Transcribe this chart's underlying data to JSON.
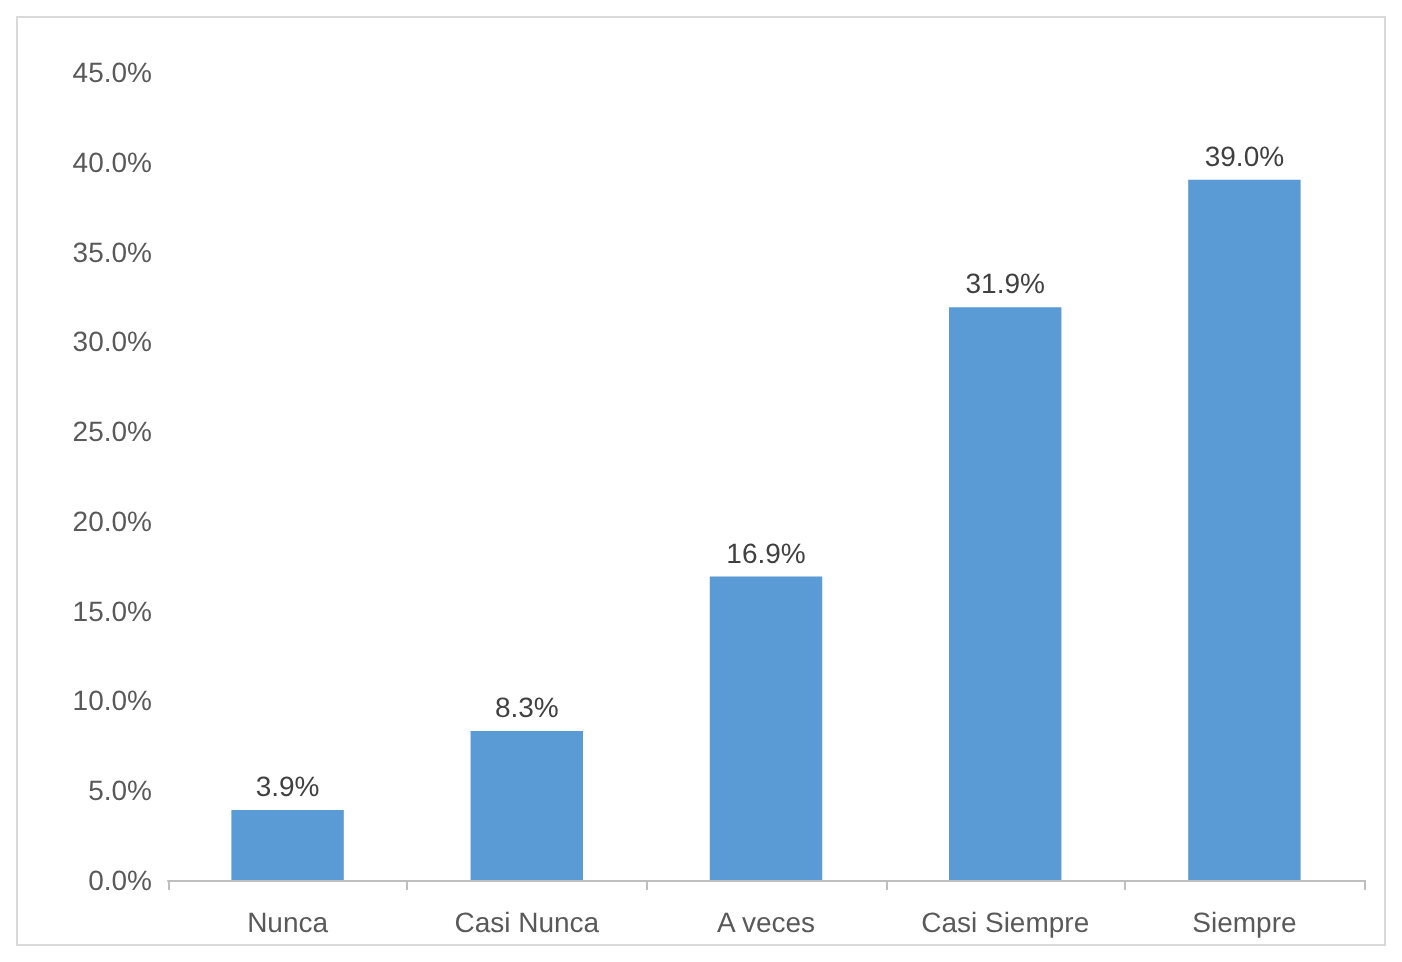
{
  "chart_data": {
    "type": "bar",
    "categories": [
      "Nunca",
      "Casi Nunca",
      "A veces",
      "Casi Siempre",
      "Siempre"
    ],
    "values": [
      3.9,
      8.3,
      16.9,
      31.9,
      39.0
    ],
    "color": "#5b9bd5",
    "value_labels": [
      "3.9%",
      "8.3%",
      "16.9%",
      "31.9%",
      "39.0%"
    ],
    "ylim": [
      0,
      45
    ],
    "yticks": [
      {
        "value": 0,
        "label": "0.0%"
      },
      {
        "value": 5,
        "label": "5.0%"
      },
      {
        "value": 10,
        "label": "10.0%"
      },
      {
        "value": 15,
        "label": "15.0%"
      },
      {
        "value": 20,
        "label": "20.0%"
      },
      {
        "value": 25,
        "label": "25.0%"
      },
      {
        "value": 30,
        "label": "30.0%"
      },
      {
        "value": 35,
        "label": "35.0%"
      },
      {
        "value": 40,
        "label": "40.0%"
      },
      {
        "value": 45,
        "label": "45.0%"
      }
    ],
    "grid": false
  }
}
